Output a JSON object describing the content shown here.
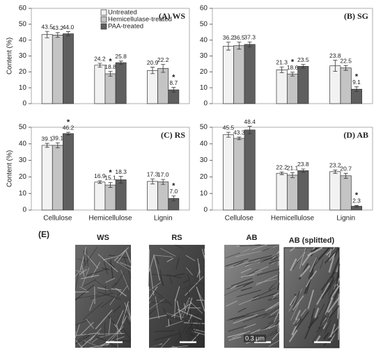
{
  "chart_data": [
    {
      "type": "bar",
      "title": "(A) WS",
      "ylabel": "Content (%)",
      "categories": [
        "Cellulose",
        "Hemicellulose",
        "Lignin"
      ],
      "show_categories": false,
      "legend": "top-center",
      "ylim": [
        0,
        60
      ],
      "yticks": [
        0,
        10,
        20,
        30,
        40,
        50,
        60
      ],
      "series": [
        {
          "name": "Untreated",
          "color": "#f2f2f2",
          "values": [
            43.5,
            24.2,
            20.9
          ],
          "value_labels": [
            "43.5",
            "24.2",
            "20.9"
          ],
          "errors": [
            2.0,
            1.2,
            2.0
          ],
          "markers": [
            null,
            null,
            null
          ]
        },
        {
          "name": "Hemicellulase-treated",
          "color": "#c4c4c4",
          "values": [
            43.2,
            18.8,
            22.2
          ],
          "value_labels": [
            "43.2",
            "18.8",
            "22.2"
          ],
          "errors": [
            1.5,
            1.5,
            2.5
          ],
          "markers": [
            null,
            "*",
            null
          ]
        },
        {
          "name": "PAA-treated",
          "color": "#5f5f5f",
          "values": [
            44.0,
            25.8,
            8.7
          ],
          "value_labels": [
            "44.0",
            "25.8",
            "8.7"
          ],
          "errors": [
            1.3,
            1.0,
            1.5
          ],
          "markers": [
            null,
            null,
            "*"
          ]
        }
      ]
    },
    {
      "type": "bar",
      "title": "(B) SG",
      "categories": [
        "Cellulose",
        "Hemicellulose",
        "Lignin"
      ],
      "show_categories": false,
      "ylim": [
        0,
        60
      ],
      "yticks": [
        0,
        10,
        20,
        30,
        40,
        50,
        60
      ],
      "series": [
        {
          "name": "Untreated",
          "color": "#f2f2f2",
          "values": [
            36.2,
            21.3,
            23.8
          ],
          "value_labels": [
            "36.2",
            "21.3",
            "23.8"
          ],
          "errors": [
            2.5,
            1.8,
            3.5
          ],
          "markers": [
            null,
            null,
            null
          ]
        },
        {
          "name": "Hemicellulase-treated",
          "color": "#c4c4c4",
          "values": [
            36.5,
            18.6,
            22.5
          ],
          "value_labels": [
            "36.5",
            "18.6",
            "22.5"
          ],
          "errors": [
            2.2,
            1.2,
            1.5
          ],
          "markers": [
            null,
            "*",
            null
          ]
        },
        {
          "name": "PAA-treated",
          "color": "#5f5f5f",
          "values": [
            37.3,
            23.5,
            9.1
          ],
          "value_labels": [
            "37.3",
            "23.5",
            "9.1"
          ],
          "errors": [
            1.5,
            1.2,
            1.5
          ],
          "markers": [
            null,
            null,
            "*"
          ]
        }
      ]
    },
    {
      "type": "bar",
      "title": "(C) RS",
      "ylabel": "Content (%)",
      "categories": [
        "Cellulose",
        "Hemicellulose",
        "Lignin"
      ],
      "show_categories": true,
      "ylim": [
        0,
        50
      ],
      "yticks": [
        0,
        10,
        20,
        30,
        40,
        50
      ],
      "series": [
        {
          "name": "Untreated",
          "color": "#f2f2f2",
          "values": [
            39.1,
            16.9,
            17.3
          ],
          "value_labels": [
            "39.1",
            "16.9",
            "17.3"
          ],
          "errors": [
            1.2,
            0.8,
            1.5
          ],
          "markers": [
            null,
            null,
            null
          ]
        },
        {
          "name": "Hemicellulase-treated",
          "color": "#c4c4c4",
          "values": [
            39.1,
            15.1,
            17.0
          ],
          "value_labels": [
            "39.1",
            "15.1",
            "17.0"
          ],
          "errors": [
            1.5,
            1.5,
            1.5
          ],
          "markers": [
            null,
            "*",
            null
          ]
        },
        {
          "name": "PAA-treated",
          "color": "#5f5f5f",
          "values": [
            46.2,
            18.3,
            7.0
          ],
          "value_labels": [
            "46.2",
            "18.3",
            "7.0"
          ],
          "errors": [
            0.8,
            2.0,
            1.5
          ],
          "markers": [
            "*",
            null,
            "*"
          ]
        }
      ]
    },
    {
      "type": "bar",
      "title": "(D) AB",
      "categories": [
        "Cellulose",
        "Hemicellulose",
        "Lignin"
      ],
      "show_categories": true,
      "ylim": [
        0,
        50
      ],
      "yticks": [
        0,
        10,
        20,
        30,
        40,
        50
      ],
      "series": [
        {
          "name": "Untreated",
          "color": "#f2f2f2",
          "values": [
            45.5,
            22.2,
            23.2
          ],
          "value_labels": [
            "45.5",
            "22.2",
            "23.2"
          ],
          "errors": [
            1.5,
            0.8,
            1.0
          ],
          "markers": [
            null,
            null,
            null
          ]
        },
        {
          "name": "Hemicellulase-treated",
          "color": "#c4c4c4",
          "values": [
            43.3,
            21.1,
            20.7
          ],
          "value_labels": [
            "43.3",
            "21.1",
            "20.7"
          ],
          "errors": [
            0.8,
            1.5,
            1.5
          ],
          "markers": [
            null,
            null,
            null
          ]
        },
        {
          "name": "PAA-treated",
          "color": "#5f5f5f",
          "values": [
            48.4,
            23.8,
            2.3
          ],
          "value_labels": [
            "48.4",
            "23.8",
            "2.3"
          ],
          "errors": [
            2.2,
            1.0,
            0.5
          ],
          "markers": [
            null,
            null,
            "*"
          ]
        }
      ]
    }
  ],
  "images": {
    "label": "(E)",
    "panels": [
      {
        "title": "WS"
      },
      {
        "title": "RS"
      },
      {
        "title": "AB"
      },
      {
        "title": "AB (splitted)"
      }
    ],
    "scale_label": "0.3 μm"
  }
}
